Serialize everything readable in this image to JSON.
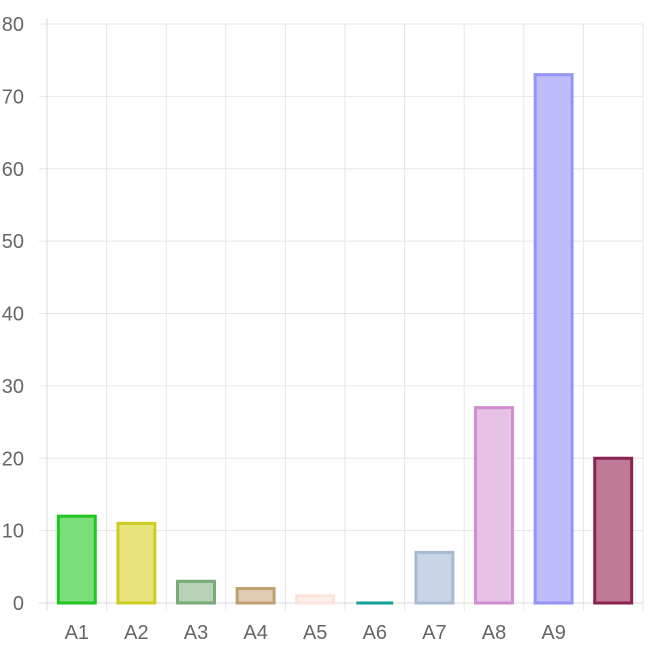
{
  "chart_data": {
    "type": "bar",
    "title": "",
    "xlabel": "",
    "ylabel": "",
    "categories": [
      "A1",
      "A2",
      "A3",
      "A4",
      "A5",
      "A6",
      "A7",
      "A8",
      "A9",
      ""
    ],
    "values": [
      12,
      11,
      3,
      2,
      1,
      0,
      7,
      27,
      73,
      20
    ],
    "ylim": [
      0,
      80
    ],
    "yticks": [
      "0",
      "10",
      "20",
      "30",
      "40",
      "50",
      "60",
      "70",
      "80"
    ],
    "grid": true,
    "legend": "none",
    "colors": {
      "fills": [
        "#7adf7a",
        "#e6e47a",
        "#b7d2b7",
        "#e1ccb3",
        "#fff0ec",
        "#2b9e96",
        "#c9d5e7",
        "#e6c2e6",
        "#bdbdfb",
        "#bf7a96"
      ],
      "strokes": [
        "#22c522",
        "#cccc22",
        "#77aa77",
        "#c0a070",
        "#fde3dc",
        "#14a096",
        "#a7bad4",
        "#d08ed0",
        "#9595f3",
        "#8b2350"
      ],
      "grid": "#e6e6e6",
      "axis": "#d9d9d9",
      "tick_text": "#666666"
    }
  }
}
